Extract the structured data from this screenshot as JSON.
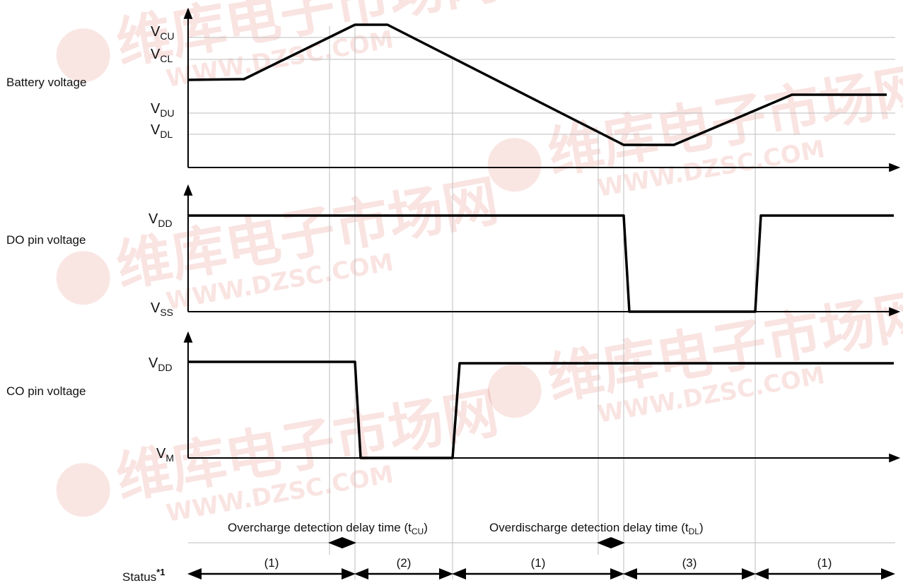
{
  "watermark": {
    "cn": "维库电子市场网",
    "url": "WWW.DZSC.COM",
    "color": "#d23b2a"
  },
  "rows": {
    "battery": "Battery voltage",
    "do_pin": "DO pin voltage",
    "co_pin": "CO pin voltage"
  },
  "levels": {
    "vcu": {
      "main": "V",
      "sub": "CU"
    },
    "vcl": {
      "main": "V",
      "sub": "CL"
    },
    "vdu": {
      "main": "V",
      "sub": "DU"
    },
    "vdl": {
      "main": "V",
      "sub": "DL"
    },
    "vdd_do": {
      "main": "V",
      "sub": "DD"
    },
    "vss": {
      "main": "V",
      "sub": "SS"
    },
    "vdd_co": {
      "main": "V",
      "sub": "DD"
    },
    "vm": {
      "main": "V",
      "sub": "M"
    }
  },
  "delays": {
    "overcharge": {
      "text": "Overcharge detection delay time (t",
      "sub": "CU",
      "close": ")"
    },
    "overdischarge": {
      "text": "Overdischarge detection delay time (t",
      "sub": "DL",
      "close": ")"
    }
  },
  "status": {
    "label": "Status",
    "note": "*1",
    "segments": [
      "(1)",
      "(2)",
      "(1)",
      "(3)",
      "(1)"
    ]
  }
}
